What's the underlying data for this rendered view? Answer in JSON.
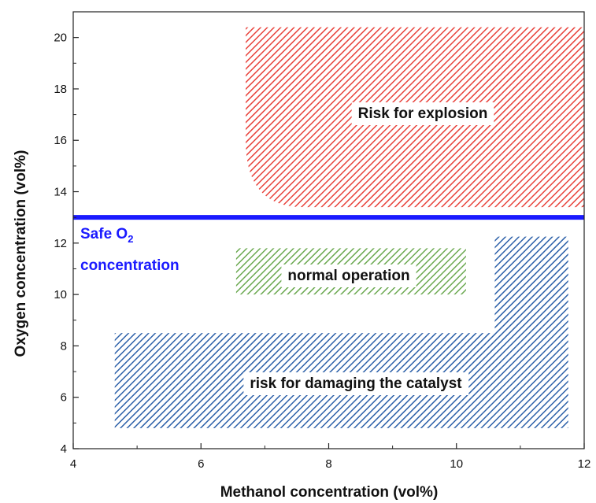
{
  "chart_data": {
    "type": "area",
    "xlabel": "Methanol concentration (vol%)",
    "ylabel": "Oxygen concentration (vol%)",
    "xlim": [
      4,
      12
    ],
    "ylim": [
      4,
      21
    ],
    "xticks": [
      4,
      6,
      8,
      10,
      12
    ],
    "yticks": [
      4,
      6,
      8,
      10,
      12,
      14,
      16,
      18,
      20
    ],
    "grid": false,
    "regions": [
      {
        "label": "Risk for explosion",
        "color": "#e8413a",
        "pattern": "diagonal-hatch",
        "polygon": [
          [
            6.7,
            20.4
          ],
          [
            12.0,
            20.4
          ],
          [
            12.0,
            13.4
          ],
          [
            7.6,
            13.4
          ],
          [
            6.7,
            16.0
          ]
        ]
      },
      {
        "label": "normal operation",
        "color": "#6aa84f",
        "pattern": "diagonal-hatch",
        "polygon": [
          [
            6.55,
            11.8
          ],
          [
            10.15,
            11.8
          ],
          [
            10.15,
            10.0
          ],
          [
            6.55,
            10.0
          ]
        ]
      },
      {
        "label": "risk for damaging the catalyst",
        "color": "#2b5fa8",
        "pattern": "diagonal-hatch",
        "polygon": [
          [
            4.65,
            8.5
          ],
          [
            10.6,
            8.5
          ],
          [
            10.6,
            12.25
          ],
          [
            11.75,
            12.25
          ],
          [
            11.75,
            4.8
          ],
          [
            4.65,
            4.8
          ]
        ]
      }
    ],
    "reference_line": {
      "y": 13.0,
      "color": "#1a1aff",
      "label_line1": "Safe O",
      "label_sub": "2",
      "label_line2": "concentration"
    }
  },
  "colors": {
    "explosion": "#e8413a",
    "normal": "#6aa84f",
    "catalyst": "#2b5fa8",
    "safe_line": "#1a1aff"
  }
}
